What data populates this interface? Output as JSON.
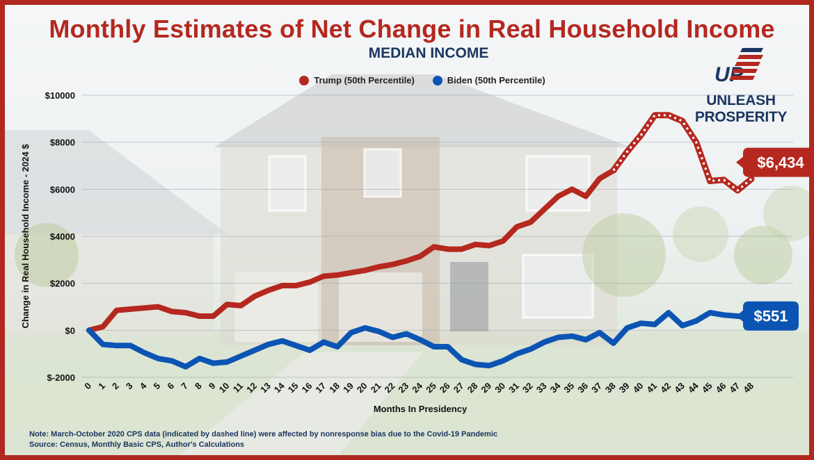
{
  "chart_data": {
    "type": "line",
    "title": "Monthly Estimates of Net Change in Real Household Income",
    "subtitle": "MEDIAN INCOME",
    "xlabel": "Months In Presidency",
    "ylabel": "Change in Real Household Income - 2024 $",
    "xlim": [
      0,
      48
    ],
    "ylim": [
      -2000,
      10000
    ],
    "yticks": [
      -2000,
      0,
      2000,
      4000,
      6000,
      8000,
      10000
    ],
    "ytick_labels": [
      "$-2000",
      "$0",
      "$2000",
      "$4000",
      "$6000",
      "$8000",
      "$10000"
    ],
    "xticks": [
      0,
      1,
      2,
      3,
      4,
      5,
      6,
      7,
      8,
      9,
      10,
      11,
      12,
      13,
      14,
      15,
      16,
      17,
      18,
      19,
      20,
      21,
      22,
      23,
      24,
      25,
      26,
      27,
      28,
      29,
      30,
      31,
      32,
      33,
      34,
      35,
      36,
      37,
      38,
      39,
      40,
      41,
      42,
      43,
      44,
      45,
      46,
      47,
      48
    ],
    "grid": true,
    "legend_position": "top-center",
    "series": [
      {
        "name": "Trump (50th Percentile)",
        "color": "#b5281f",
        "x": [
          0,
          1,
          2,
          3,
          4,
          5,
          6,
          7,
          8,
          9,
          10,
          11,
          12,
          13,
          14,
          15,
          16,
          17,
          18,
          19,
          20,
          21,
          22,
          23,
          24,
          25,
          26,
          27,
          28,
          29,
          30,
          31,
          32,
          33,
          34,
          35,
          36,
          37,
          38
        ],
        "values": [
          0,
          150,
          850,
          900,
          950,
          1000,
          800,
          750,
          600,
          600,
          1100,
          1050,
          1450,
          1700,
          1900,
          1900,
          2050,
          2300,
          2350,
          2450,
          2550,
          2700,
          2800,
          2950,
          3150,
          3550,
          3450,
          3450,
          3650,
          3600,
          3800,
          4400,
          4600,
          5150,
          5700,
          6000,
          5700,
          6450,
          6800
        ]
      },
      {
        "name": "Trump (50th Percentile) — dashed segment, March–October 2020",
        "color": "#b5281f",
        "dashed": true,
        "x": [
          38,
          39,
          40,
          41,
          42,
          43,
          44,
          45,
          46,
          47,
          48
        ],
        "values": [
          6800,
          7600,
          8300,
          9150,
          9150,
          8900,
          8000,
          6350,
          6400,
          5950,
          6434
        ]
      },
      {
        "name": "Biden (50th Percentile)",
        "color": "#0c54b3",
        "x": [
          0,
          1,
          2,
          3,
          4,
          5,
          6,
          7,
          8,
          9,
          10,
          11,
          12,
          13,
          14,
          15,
          16,
          17,
          18,
          19,
          20,
          21,
          22,
          23,
          24,
          25,
          26,
          27,
          28,
          29,
          30,
          31,
          32,
          33,
          34,
          35,
          36,
          37,
          38,
          39,
          40,
          41,
          42,
          43,
          44,
          45,
          46,
          47,
          48
        ],
        "values": [
          0,
          -600,
          -650,
          -650,
          -950,
          -1200,
          -1300,
          -1550,
          -1200,
          -1400,
          -1350,
          -1100,
          -850,
          -600,
          -450,
          -650,
          -850,
          -500,
          -700,
          -100,
          100,
          -50,
          -300,
          -150,
          -400,
          -700,
          -700,
          -1250,
          -1450,
          -1500,
          -1300,
          -1000,
          -800,
          -500,
          -300,
          -250,
          -400,
          -100,
          -550,
          100,
          300,
          250,
          750,
          200,
          400,
          750,
          650,
          600,
          551
        ]
      }
    ],
    "callouts": [
      {
        "series": "Trump (50th Percentile)",
        "label": "$6,434",
        "color": "#b5281f"
      },
      {
        "series": "Biden (50th Percentile)",
        "label": "$551",
        "color": "#0c54b3"
      }
    ]
  },
  "header": {
    "title": "Monthly Estimates of Net Change in Real Household Income",
    "subtitle": "MEDIAN INCOME"
  },
  "legend": {
    "items": [
      {
        "label": "Trump (50th Percentile)",
        "color": "#b5281f"
      },
      {
        "label": "Biden (50th Percentile)",
        "color": "#0c54b3"
      }
    ]
  },
  "brand": {
    "logo_text": "UP",
    "name": "UNLEASH PROSPERITY"
  },
  "footnote": {
    "note": "Note: March-October 2020 CPS data (indicated by dashed line) were affected by nonresponse bias due to the Covid-19 Pandemic",
    "source": "Source: Census, Monthly Basic CPS, Author's Calculations"
  },
  "colors": {
    "accent_red": "#b5281f",
    "accent_blue": "#0c54b3",
    "navy": "#1b3660"
  }
}
